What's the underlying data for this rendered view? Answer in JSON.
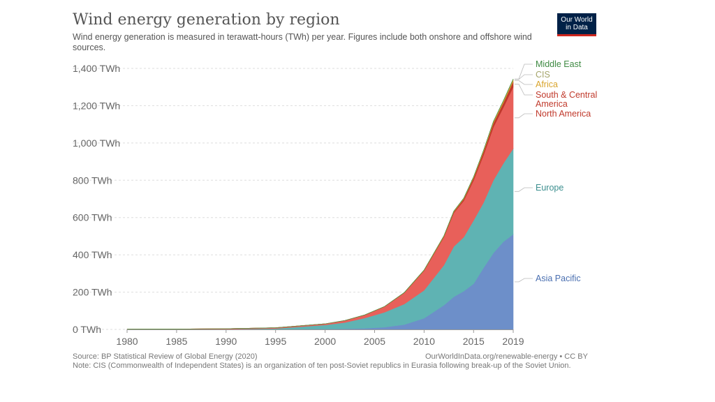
{
  "header": {
    "title": "Wind energy generation by region",
    "subtitle": "Wind energy generation is measured in terawatt-hours (TWh) per year. Figures include both onshore and offshore wind sources.",
    "logo": "Our World in Data"
  },
  "footer": {
    "source": "Source: BP Statistical Review of Global Energy (2020)",
    "url": "OurWorldInData.org/renewable-energy • CC BY",
    "note": "Note: CIS (Commonwealth of Independent States) is an organization of ten post-Soviet republics in Eurasia following break-up of the Soviet Union."
  },
  "chart_data": {
    "type": "area",
    "stacked": true,
    "title": "Wind energy generation by region",
    "x": [
      1980,
      1985,
      1990,
      1995,
      2000,
      2002,
      2004,
      2006,
      2008,
      2010,
      2012,
      2013,
      2014,
      2015,
      2016,
      2017,
      2018,
      2019
    ],
    "xticks": [
      "1980",
      "1985",
      "1990",
      "1995",
      "2000",
      "2005",
      "2010",
      "2015",
      "2019"
    ],
    "yticks": [
      "0 TWh",
      "200 TWh",
      "400 TWh",
      "600 TWh",
      "800 TWh",
      "1,000 TWh",
      "1,200 TWh",
      "1,400 TWh"
    ],
    "ylim": [
      0,
      1400
    ],
    "grid": true,
    "legend": "right, inline labels",
    "series": [
      {
        "name": "Asia Pacific",
        "color": "#6d8fc9",
        "values": [
          0,
          0,
          0,
          1,
          2,
          3,
          6,
          12,
          26,
          60,
          130,
          175,
          205,
          245,
          330,
          410,
          470,
          510
        ]
      },
      {
        "name": "Europe",
        "color": "#5fb3b3",
        "values": [
          0,
          0,
          1,
          4,
          22,
          34,
          55,
          80,
          110,
          150,
          215,
          270,
          290,
          340,
          350,
          390,
          420,
          460
        ]
      },
      {
        "name": "North America",
        "color": "#e8605a",
        "values": [
          1,
          2,
          3,
          4,
          6,
          11,
          16,
          30,
          60,
          105,
          150,
          180,
          195,
          215,
          255,
          285,
          300,
          330
        ]
      },
      {
        "name": "South & Central America",
        "color": "#c0392b",
        "values": [
          0,
          0,
          0,
          0,
          0,
          0,
          0.5,
          0.5,
          1,
          2,
          4,
          6,
          9,
          13,
          18,
          22,
          25,
          30
        ]
      },
      {
        "name": "Africa",
        "color": "#d9a42c",
        "values": [
          0,
          0,
          0,
          0,
          0,
          0,
          0.5,
          0.5,
          1,
          2,
          3,
          3,
          4,
          5,
          6,
          7,
          9,
          10
        ]
      },
      {
        "name": "CIS",
        "color": "#a5a56b",
        "values": [
          0,
          0,
          0,
          0,
          0,
          0,
          0,
          0,
          0,
          0,
          0,
          0.5,
          0.5,
          0.5,
          1,
          1,
          1.5,
          2
        ]
      },
      {
        "name": "Middle East",
        "color": "#3f8a43",
        "values": [
          0,
          0,
          0,
          0,
          0,
          0,
          0,
          0,
          0,
          0,
          0,
          0.5,
          0.5,
          0.5,
          0.5,
          1,
          1,
          1.5
        ]
      }
    ],
    "labels": [
      {
        "series": "Middle East",
        "lines": [
          "Middle East"
        ],
        "color": "#3f8a43"
      },
      {
        "series": "CIS",
        "lines": [
          "CIS"
        ],
        "color": "#a5a56b"
      },
      {
        "series": "Africa",
        "lines": [
          "Africa"
        ],
        "color": "#d9a42c"
      },
      {
        "series": "South & Central America",
        "lines": [
          "South & Central",
          "America"
        ],
        "color": "#c0392b"
      },
      {
        "series": "North America",
        "lines": [
          "North America"
        ],
        "color": "#c0392b"
      },
      {
        "series": "Europe",
        "lines": [
          "Europe"
        ],
        "color": "#3d8f8f"
      },
      {
        "series": "Asia Pacific",
        "lines": [
          "Asia Pacific"
        ],
        "color": "#4a6fb0"
      }
    ]
  }
}
